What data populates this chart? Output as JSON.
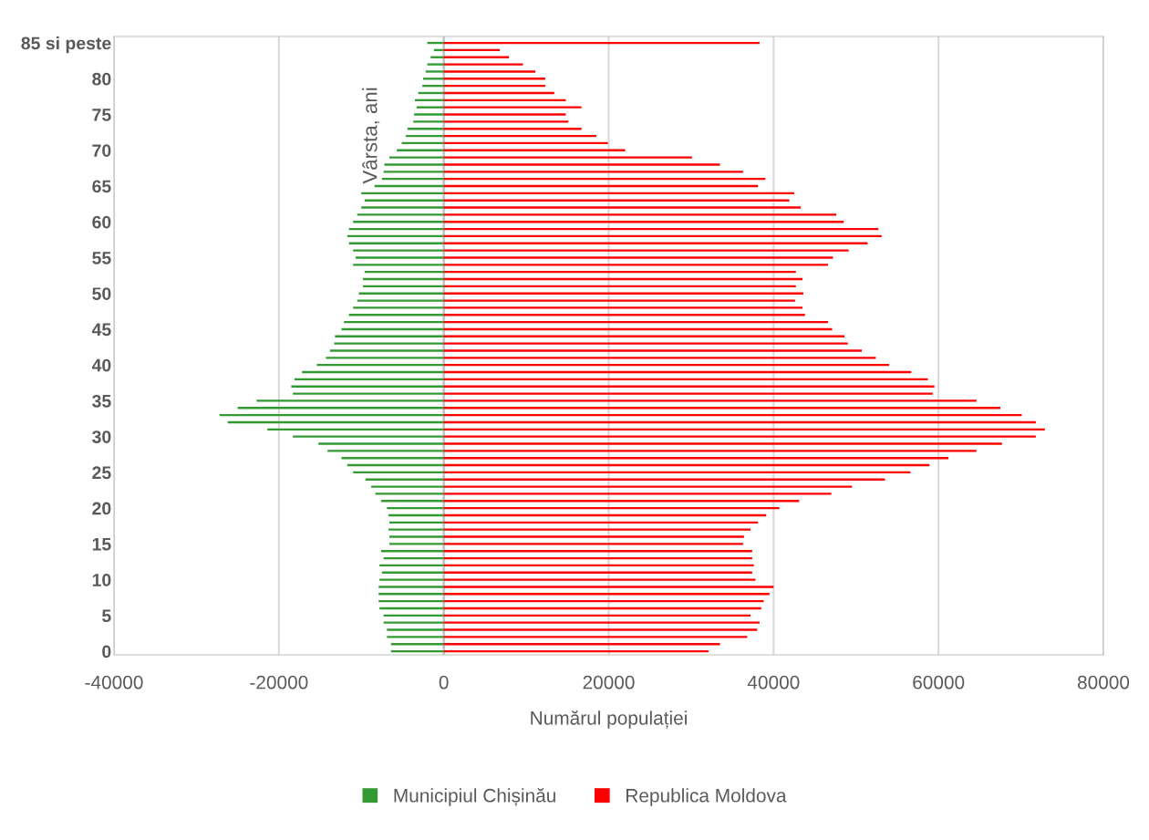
{
  "chart_data": {
    "type": "bar",
    "orientation": "horizontal",
    "xlabel": "Numărul populației",
    "ylabel": "Vârsta, ani",
    "categories": [
      "85 si peste",
      null,
      null,
      null,
      null,
      "80",
      null,
      null,
      null,
      null,
      "75",
      null,
      null,
      null,
      null,
      "70",
      null,
      null,
      null,
      null,
      "65",
      null,
      null,
      null,
      null,
      "60",
      null,
      null,
      null,
      null,
      "55",
      null,
      null,
      null,
      null,
      "50",
      null,
      null,
      null,
      null,
      "45",
      null,
      null,
      null,
      null,
      "40",
      null,
      null,
      null,
      null,
      "35",
      null,
      null,
      null,
      null,
      "30",
      null,
      null,
      null,
      null,
      "25",
      null,
      null,
      null,
      null,
      "20",
      null,
      null,
      null,
      null,
      "15",
      null,
      null,
      null,
      null,
      "10",
      null,
      null,
      null,
      null,
      "5",
      null,
      null,
      null,
      null,
      "0"
    ],
    "series": [
      {
        "name": "Municipiul Chișinău",
        "color": "#339933",
        "values": [
          -2000,
          -1200,
          -1600,
          -2000,
          -2200,
          -2500,
          -2600,
          -3100,
          -3500,
          -3300,
          -3600,
          -3700,
          -4400,
          -4600,
          -5100,
          -5700,
          -6600,
          -7200,
          -7300,
          -7500,
          -8400,
          -10000,
          -9600,
          -10000,
          -10500,
          -11000,
          -11500,
          -11700,
          -11500,
          -11000,
          -10700,
          -11000,
          -9600,
          -9800,
          -9800,
          -10300,
          -10500,
          -11000,
          -11500,
          -12100,
          -12400,
          -13200,
          -13300,
          -13800,
          -14300,
          -15400,
          -17200,
          -18100,
          -18500,
          -18300,
          -22700,
          -25000,
          -27200,
          -26200,
          -21400,
          -18300,
          -15200,
          -14100,
          -12400,
          -11700,
          -11000,
          -9500,
          -8800,
          -8300,
          -7600,
          -6900,
          -6700,
          -6600,
          -6700,
          -6600,
          -6600,
          -7600,
          -7300,
          -7800,
          -7500,
          -7800,
          -7900,
          -7900,
          -7900,
          -7800,
          -7300,
          -7300,
          -6900,
          -6900,
          -6400,
          -6400
        ]
      },
      {
        "name": "Republica Moldova",
        "color": "#ff0000",
        "values": [
          38300,
          6800,
          7900,
          9600,
          11100,
          12300,
          12300,
          13400,
          14800,
          16700,
          14800,
          15100,
          16700,
          18500,
          19900,
          22000,
          30100,
          33500,
          36300,
          39000,
          38100,
          42500,
          41900,
          43300,
          47600,
          48500,
          52700,
          53100,
          51400,
          49100,
          47200,
          46600,
          42700,
          43500,
          42700,
          43600,
          42600,
          43500,
          43800,
          46600,
          47100,
          48600,
          49000,
          50700,
          52400,
          54000,
          56700,
          58700,
          59500,
          59300,
          64600,
          67500,
          70100,
          71800,
          72900,
          71800,
          67700,
          64600,
          61200,
          58900,
          56600,
          53500,
          49500,
          47000,
          43100,
          40700,
          39100,
          38100,
          37200,
          36400,
          36300,
          37400,
          37400,
          37600,
          37400,
          37800,
          40000,
          39500,
          38800,
          38500,
          37200,
          38300,
          38000,
          36800,
          33500,
          32100
        ]
      }
    ],
    "xlim": [
      -40000,
      80000
    ],
    "xticks": [
      -40000,
      -20000,
      0,
      20000,
      40000,
      60000,
      80000
    ],
    "grid": "x",
    "legend": "bottom",
    "stacked": true
  }
}
